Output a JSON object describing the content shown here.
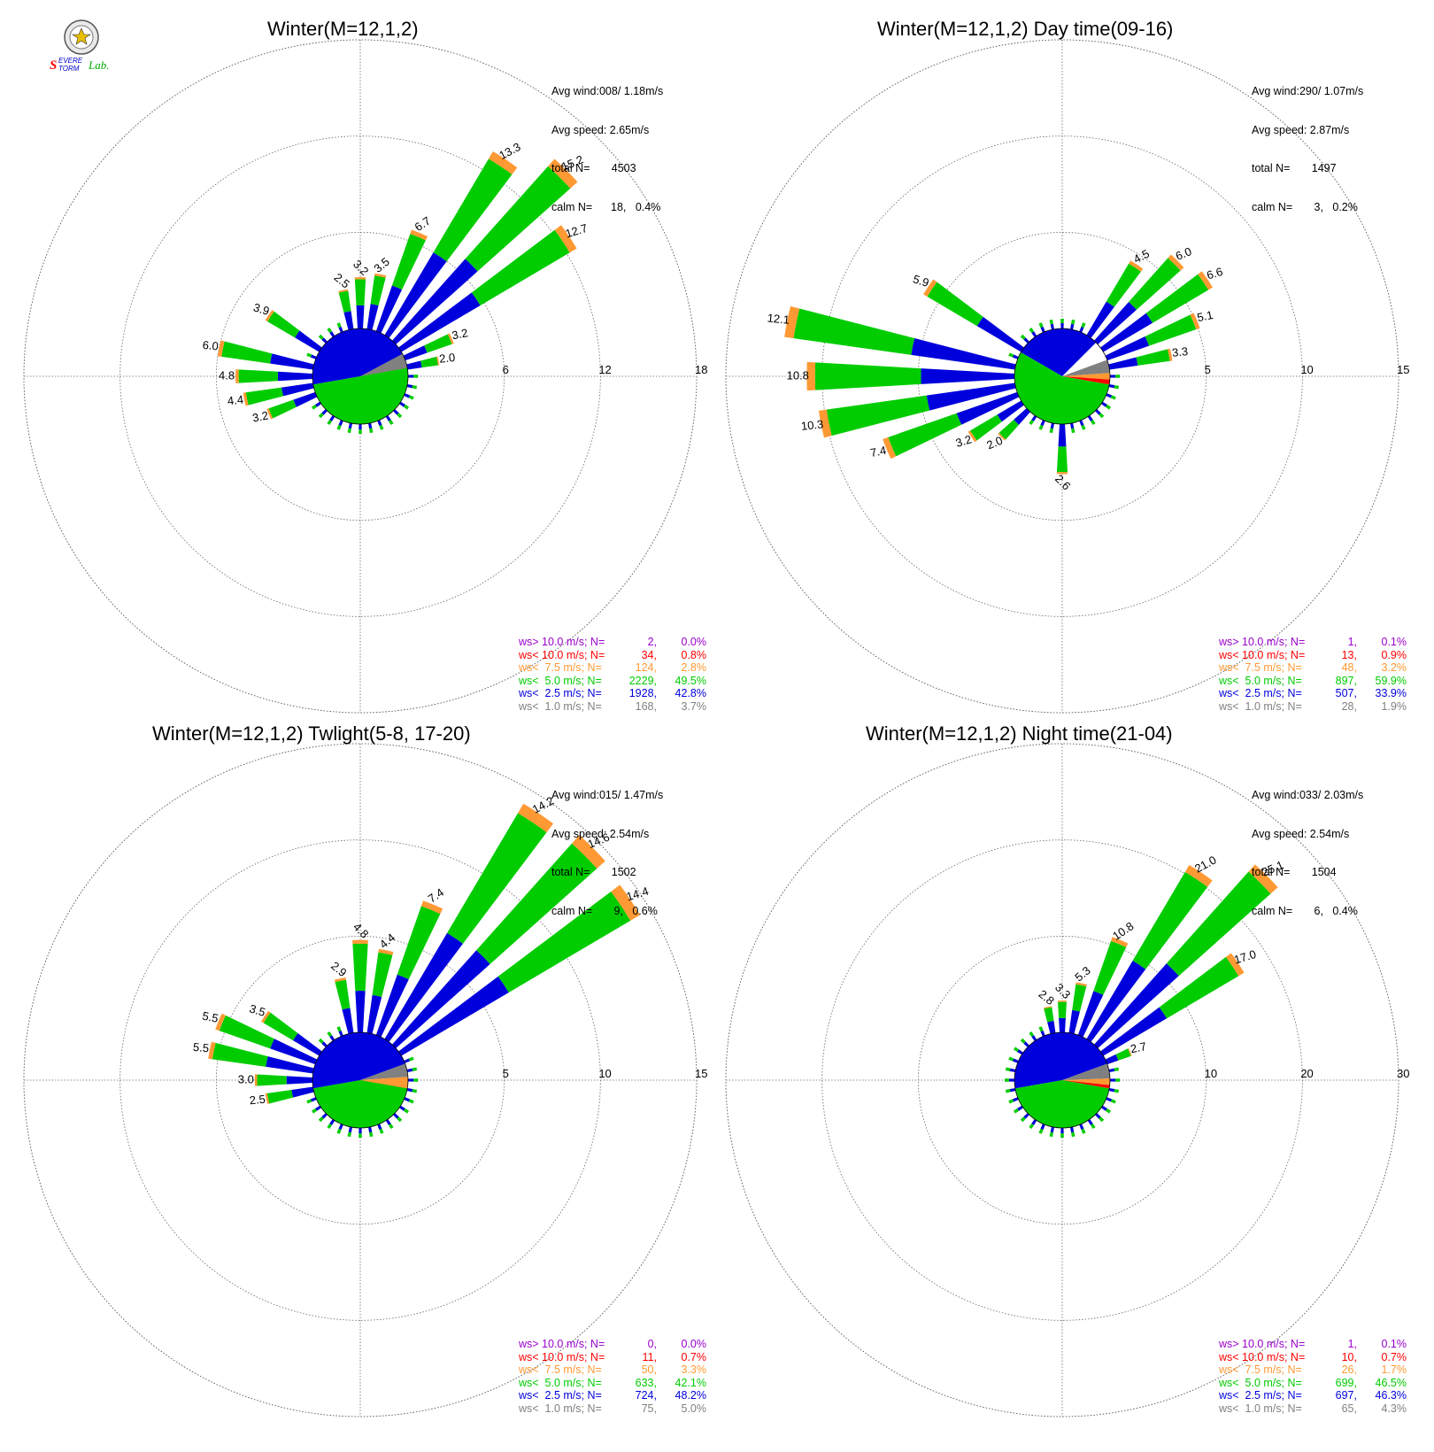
{
  "logo": {
    "name": "Severe Storm Lab.",
    "text_severe": "SEVERE",
    "text_storm": "STORM",
    "text_lab": "Lab."
  },
  "colors": {
    "grey": "#808080",
    "blue": "#0000dd",
    "green": "#00cc00",
    "orange": "#ff9933",
    "red": "#ff0000",
    "purple": "#9900cc",
    "grid": "#666666"
  },
  "chart_data": [
    {
      "type": "windrose",
      "title": "Winter(M=12,1,2)",
      "info": {
        "avg_wind": "Avg wind:008/ 1.18m/s",
        "avg_speed": "Avg speed: 2.65m/s",
        "total": "total N=       4503",
        "calm": "calm N=      18,   0.4%"
      },
      "rings": [
        6,
        12,
        18
      ],
      "ring_labels": [
        "6",
        "12",
        "18"
      ],
      "labeled_bars": [
        {
          "dir": 360,
          "value": 3.2,
          "label": "3.2"
        },
        {
          "dir": 11.25,
          "value": 3.5,
          "label": "3.5"
        },
        {
          "dir": 22.5,
          "value": 6.7,
          "label": "6.7"
        },
        {
          "dir": 33.75,
          "value": 13.3,
          "label": "13.3"
        },
        {
          "dir": 45,
          "value": 15.2,
          "label": "15.2"
        },
        {
          "dir": 56.25,
          "value": 12.7,
          "label": "12.7"
        },
        {
          "dir": 67.5,
          "value": 3.2,
          "label": "3.2"
        },
        {
          "dir": 78.75,
          "value": 2.0,
          "label": "2.0"
        },
        {
          "dir": 348.75,
          "value": 2.5,
          "label": "2.5"
        },
        {
          "dir": 303.75,
          "value": 3.9,
          "label": "3.9"
        },
        {
          "dir": 281.25,
          "value": 6.0,
          "label": "6.0"
        },
        {
          "dir": 270,
          "value": 4.8,
          "label": "4.8"
        },
        {
          "dir": 258.75,
          "value": 4.4,
          "label": "4.4"
        },
        {
          "dir": 247.5,
          "value": 3.2,
          "label": "3.2"
        }
      ],
      "center": {
        "blue_deg": [
          -100,
          80
        ],
        "green_deg": [
          80,
          260
        ],
        "grey_deg": [
          62,
          80
        ],
        "orange_deg": [
          80,
          88
        ],
        "red_deg": [
          88,
          92
        ]
      },
      "legend": [
        {
          "label": "ws> 10.0 m/s; N=",
          "n": "2",
          "pct": "0.0%",
          "color": "#9900cc"
        },
        {
          "label": "ws< 10.0 m/s; N=",
          "n": "34",
          "pct": "0.8%",
          "color": "#ff0000"
        },
        {
          "label": "ws<  7.5 m/s; N=",
          "n": "124",
          "pct": "2.8%",
          "color": "#ff9933"
        },
        {
          "label": "ws<  5.0 m/s; N=",
          "n": "2229",
          "pct": "49.5%",
          "color": "#00cc00"
        },
        {
          "label": "ws<  2.5 m/s; N=",
          "n": "1928",
          "pct": "42.8%",
          "color": "#0000dd"
        },
        {
          "label": "ws<  1.0 m/s; N=",
          "n": "168",
          "pct": "3.7%",
          "color": "#808080"
        }
      ]
    },
    {
      "type": "windrose",
      "title": "Winter(M=12,1,2) Day time(09-16)",
      "info": {
        "avg_wind": "Avg wind:290/ 1.07m/s",
        "avg_speed": "Avg speed: 2.87m/s",
        "total": "total N=       1497",
        "calm": "calm N=       3,   0.2%"
      },
      "rings": [
        5,
        10,
        15
      ],
      "ring_labels": [
        "5",
        "10",
        "15"
      ],
      "labeled_bars": [
        {
          "dir": 33.75,
          "value": 4.5,
          "label": "4.5"
        },
        {
          "dir": 45,
          "value": 6.0,
          "label": "6.0"
        },
        {
          "dir": 56.25,
          "value": 6.6,
          "label": "6.6"
        },
        {
          "dir": 67.5,
          "value": 5.1,
          "label": "5.1"
        },
        {
          "dir": 78.75,
          "value": 3.3,
          "label": "3.3"
        },
        {
          "dir": 303.75,
          "value": 5.9,
          "label": "5.9"
        },
        {
          "dir": 281.25,
          "value": 12.1,
          "label": "12.1"
        },
        {
          "dir": 270,
          "value": 10.8,
          "label": "10.8"
        },
        {
          "dir": 258.75,
          "value": 10.3,
          "label": "10.3"
        },
        {
          "dir": 247.5,
          "value": 7.4,
          "label": "7.4"
        },
        {
          "dir": 236.25,
          "value": 3.2,
          "label": "3.2"
        },
        {
          "dir": 225,
          "value": 2.0,
          "label": "2.0"
        },
        {
          "dir": 180,
          "value": 2.6,
          "label": "2.6"
        }
      ],
      "center": {
        "blue_deg": [
          -60,
          45
        ],
        "green_deg": [
          100,
          300
        ],
        "grey_deg": [
          70,
          86
        ],
        "orange_deg": [
          86,
          94
        ],
        "red_deg": [
          94,
          100
        ]
      },
      "legend": [
        {
          "label": "ws> 10.0 m/s; N=",
          "n": "1",
          "pct": "0.1%",
          "color": "#9900cc"
        },
        {
          "label": "ws< 10.0 m/s; N=",
          "n": "13",
          "pct": "0.9%",
          "color": "#ff0000"
        },
        {
          "label": "ws<  7.5 m/s; N=",
          "n": "48",
          "pct": "3.2%",
          "color": "#ff9933"
        },
        {
          "label": "ws<  5.0 m/s; N=",
          "n": "897",
          "pct": "59.9%",
          "color": "#00cc00"
        },
        {
          "label": "ws<  2.5 m/s; N=",
          "n": "507",
          "pct": "33.9%",
          "color": "#0000dd"
        },
        {
          "label": "ws<  1.0 m/s; N=",
          "n": "28",
          "pct": "1.9%",
          "color": "#808080"
        }
      ]
    },
    {
      "type": "windrose",
      "title": "Winter(M=12,1,2) Twlight(5-8, 17-20)",
      "info": {
        "avg_wind": "Avg wind:015/ 1.47m/s",
        "avg_speed": "Avg speed: 2.54m/s",
        "total": "total N=       1502",
        "calm": "calm N=       9,   0.6%"
      },
      "rings": [
        5,
        10,
        15
      ],
      "ring_labels": [
        "5",
        "10",
        "15"
      ],
      "labeled_bars": [
        {
          "dir": 360,
          "value": 4.8,
          "label": "4.8"
        },
        {
          "dir": 11.25,
          "value": 4.4,
          "label": "4.4"
        },
        {
          "dir": 22.5,
          "value": 7.4,
          "label": "7.4"
        },
        {
          "dir": 33.75,
          "value": 14.2,
          "label": "14.2"
        },
        {
          "dir": 45,
          "value": 14.6,
          "label": "14.6"
        },
        {
          "dir": 56.25,
          "value": 14.4,
          "label": "14.4"
        },
        {
          "dir": 348.75,
          "value": 2.9,
          "label": "2.9"
        },
        {
          "dir": 303.75,
          "value": 3.5,
          "label": "3.5"
        },
        {
          "dir": 292.5,
          "value": 5.5,
          "label": "5.5"
        },
        {
          "dir": 281.25,
          "value": 5.5,
          "label": "5.5"
        },
        {
          "dir": 270,
          "value": 3.0,
          "label": "3.0"
        },
        {
          "dir": 258.75,
          "value": 2.5,
          "label": "2.5"
        }
      ],
      "center": {
        "blue_deg": [
          -100,
          70
        ],
        "green_deg": [
          100,
          260
        ],
        "grey_deg": [
          70,
          86
        ],
        "orange_deg": [
          86,
          100
        ],
        "red_deg": [
          100,
          102
        ]
      },
      "legend": [
        {
          "label": "ws> 10.0 m/s; N=",
          "n": "0",
          "pct": "0.0%",
          "color": "#9900cc"
        },
        {
          "label": "ws< 10.0 m/s; N=",
          "n": "11",
          "pct": "0.7%",
          "color": "#ff0000"
        },
        {
          "label": "ws<  7.5 m/s; N=",
          "n": "50",
          "pct": "3.3%",
          "color": "#ff9933"
        },
        {
          "label": "ws<  5.0 m/s; N=",
          "n": "633",
          "pct": "42.1%",
          "color": "#00cc00"
        },
        {
          "label": "ws<  2.5 m/s; N=",
          "n": "724",
          "pct": "48.2%",
          "color": "#0000dd"
        },
        {
          "label": "ws<  1.0 m/s; N=",
          "n": "75",
          "pct": "5.0%",
          "color": "#808080"
        }
      ]
    },
    {
      "type": "windrose",
      "title": "Winter(M=12,1,2) Night time(21-04)",
      "info": {
        "avg_wind": "Avg wind:033/ 2.03m/s",
        "avg_speed": "Avg speed: 2.54m/s",
        "total": "total N=       1504",
        "calm": "calm N=       6,   0.4%"
      },
      "rings": [
        10,
        20,
        30
      ],
      "ring_labels": [
        "10",
        "20",
        "30"
      ],
      "labeled_bars": [
        {
          "dir": 348.75,
          "value": 2.8,
          "label": "2.8"
        },
        {
          "dir": 360,
          "value": 3.3,
          "label": "3.3"
        },
        {
          "dir": 11.25,
          "value": 5.3,
          "label": "5.3"
        },
        {
          "dir": 22.5,
          "value": 10.8,
          "label": "10.8"
        },
        {
          "dir": 33.75,
          "value": 21.0,
          "label": "21.0"
        },
        {
          "dir": 45,
          "value": 25.1,
          "label": "25.1"
        },
        {
          "dir": 56.25,
          "value": 17.0,
          "label": "17.0"
        },
        {
          "dir": 67.5,
          "value": 2.7,
          "label": "2.7"
        }
      ],
      "center": {
        "blue_deg": [
          -100,
          70
        ],
        "green_deg": [
          100,
          260
        ],
        "grey_deg": [
          70,
          88
        ],
        "orange_deg": [
          88,
          96
        ],
        "red_deg": [
          96,
          100
        ]
      },
      "legend": [
        {
          "label": "ws> 10.0 m/s; N=",
          "n": "1",
          "pct": "0.1%",
          "color": "#9900cc"
        },
        {
          "label": "ws< 10.0 m/s; N=",
          "n": "10",
          "pct": "0.7%",
          "color": "#ff0000"
        },
        {
          "label": "ws<  7.5 m/s; N=",
          "n": "26",
          "pct": "1.7%",
          "color": "#ff9933"
        },
        {
          "label": "ws<  5.0 m/s; N=",
          "n": "699",
          "pct": "46.5%",
          "color": "#00cc00"
        },
        {
          "label": "ws<  2.5 m/s; N=",
          "n": "697",
          "pct": "46.3%",
          "color": "#0000dd"
        },
        {
          "label": "ws<  1.0 m/s; N=",
          "n": "65",
          "pct": "4.3%",
          "color": "#808080"
        }
      ]
    }
  ]
}
